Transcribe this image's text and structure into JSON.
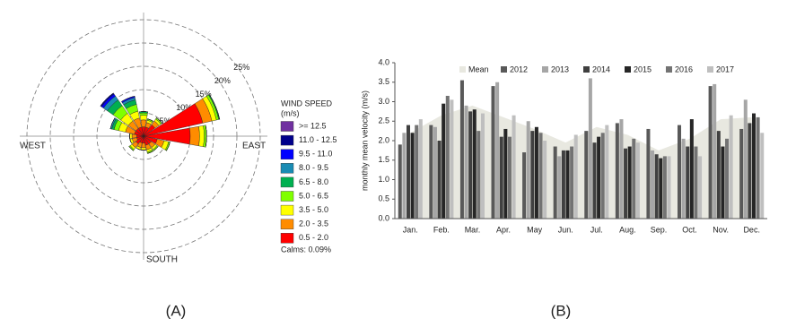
{
  "chart_data": [
    {
      "type": "windrose",
      "panel_label": "(A)",
      "directions": [
        0,
        22.5,
        45,
        67.5,
        90,
        112.5,
        135,
        157.5,
        180,
        202.5,
        225,
        247.5,
        270,
        292.5,
        315,
        337.5
      ],
      "direction_labels": {
        "west": "WEST",
        "east": "EAST",
        "south": "SOUTH"
      },
      "rlim": [
        0,
        25
      ],
      "rticks": [
        {
          "value": 5,
          "label": "5%"
        },
        {
          "value": 10,
          "label": "10%"
        },
        {
          "value": 15,
          "label": "15%"
        },
        {
          "value": 20,
          "label": "20%"
        },
        {
          "value": 25,
          "label": "25%"
        }
      ],
      "legend_title": [
        "WIND SPEED",
        "(m/s)"
      ],
      "calms": "Calms: 0.09%",
      "series": [
        {
          "name": "0.5 - 2.0",
          "color": "#ff0000",
          "values": [
            2,
            2,
            3,
            13,
            10,
            3,
            2,
            2,
            1.5,
            1.5,
            2,
            1.5,
            1.5,
            2,
            2,
            2
          ]
        },
        {
          "name": "2.0 - 3.5",
          "color": "#ff8c00",
          "values": [
            1.5,
            1,
            1,
            2,
            2,
            1.5,
            1,
            1,
            1,
            1,
            1,
            1,
            1,
            2,
            2,
            2
          ]
        },
        {
          "name": "3.5 - 5.0",
          "color": "#ffff00",
          "values": [
            1,
            0.5,
            0.5,
            1,
            1,
            1,
            0.5,
            0.5,
            0.5,
            0.5,
            0.5,
            0.5,
            0.5,
            1.5,
            2,
            1.5
          ]
        },
        {
          "name": "5.0 - 6.5",
          "color": "#80ff00",
          "values": [
            0.5,
            0.3,
            0.3,
            0.5,
            0.5,
            0.3,
            0.3,
            0.3,
            0,
            0,
            0.3,
            0,
            0,
            1,
            2,
            1.5
          ]
        },
        {
          "name": "6.5 - 8.0",
          "color": "#00b050",
          "values": [
            0.3,
            0,
            0,
            0.2,
            0,
            0,
            0,
            0,
            0,
            0,
            0,
            0,
            0,
            0.5,
            1.5,
            1
          ]
        },
        {
          "name": "8.0 - 9.5",
          "color": "#1a8cb4",
          "values": [
            0,
            0,
            0,
            0,
            0,
            0,
            0,
            0,
            0,
            0,
            0,
            0,
            0,
            0.3,
            1,
            0.5
          ]
        },
        {
          "name": "9.5 - 11.0",
          "color": "#0000ff",
          "values": [
            0,
            0,
            0,
            0,
            0,
            0,
            0,
            0,
            0,
            0,
            0,
            0,
            0,
            0,
            0.5,
            0.3
          ]
        },
        {
          "name": "11.0 - 12.5",
          "color": "#00008b",
          "values": [
            0,
            0,
            0,
            0,
            0,
            0,
            0,
            0,
            0,
            0,
            0,
            0,
            0,
            0,
            0.3,
            0
          ]
        },
        {
          "name": ">= 12.5",
          "color": "#7030a0",
          "values": [
            0,
            0,
            0,
            0,
            0,
            0,
            0,
            0,
            0,
            0,
            0,
            0,
            0,
            0,
            0,
            0
          ]
        }
      ]
    },
    {
      "type": "bar",
      "panel_label": "(B)",
      "y_label": "monthly mean velocity (m/s)",
      "categories": [
        "Jan.",
        "Feb.",
        "Mar.",
        "Apr.",
        "May",
        "Jun.",
        "Jul.",
        "Aug.",
        "Sep.",
        "Oct.",
        "Nov.",
        "Dec."
      ],
      "ylim": [
        0,
        4
      ],
      "yticks": [
        {
          "value": 0,
          "label": "0.0"
        },
        {
          "value": 0.5,
          "label": "0.5"
        },
        {
          "value": 1,
          "label": "1.0"
        },
        {
          "value": 1.5,
          "label": "1.5"
        },
        {
          "value": 2,
          "label": "2.0"
        },
        {
          "value": 2.5,
          "label": "2.5"
        },
        {
          "value": 3,
          "label": "3.0"
        },
        {
          "value": 3.5,
          "label": "3.5"
        },
        {
          "value": 4,
          "label": "4.0"
        }
      ],
      "area_series": {
        "name": "Mean",
        "color": "#e8e8e0",
        "values": [
          2.2,
          2.65,
          2.9,
          2.6,
          2.3,
          1.95,
          2.35,
          2.15,
          1.75,
          2.05,
          2.55,
          2.6
        ]
      },
      "series": [
        {
          "name": "2012",
          "color": "#595959",
          "values": [
            1.9,
            2.4,
            3.55,
            3.4,
            1.7,
            1.85,
            2.25,
            2.45,
            2.3,
            2.4,
            3.4,
            2.3
          ]
        },
        {
          "name": "2013",
          "color": "#a6a6a6",
          "values": [
            2.2,
            2.35,
            2.9,
            3.5,
            2.5,
            1.6,
            3.6,
            2.55,
            1.75,
            2.05,
            3.45,
            3.05
          ]
        },
        {
          "name": "2014",
          "color": "#404040",
          "values": [
            2.4,
            2.0,
            2.75,
            2.1,
            2.25,
            1.75,
            1.95,
            1.8,
            1.65,
            1.85,
            2.25,
            2.45
          ]
        },
        {
          "name": "2015",
          "color": "#262626",
          "values": [
            2.2,
            2.95,
            2.8,
            2.3,
            2.35,
            1.75,
            2.1,
            1.85,
            1.55,
            2.55,
            1.85,
            2.7
          ]
        },
        {
          "name": "2016",
          "color": "#737373",
          "values": [
            2.4,
            3.15,
            2.25,
            2.1,
            2.2,
            1.85,
            2.2,
            2.05,
            1.6,
            1.85,
            2.05,
            2.6
          ]
        },
        {
          "name": "2017",
          "color": "#bfbfbf",
          "values": [
            2.55,
            3.05,
            2.7,
            2.65,
            2.0,
            2.15,
            2.4,
            1.95,
            1.6,
            1.6,
            2.65,
            2.2
          ]
        }
      ]
    }
  ]
}
